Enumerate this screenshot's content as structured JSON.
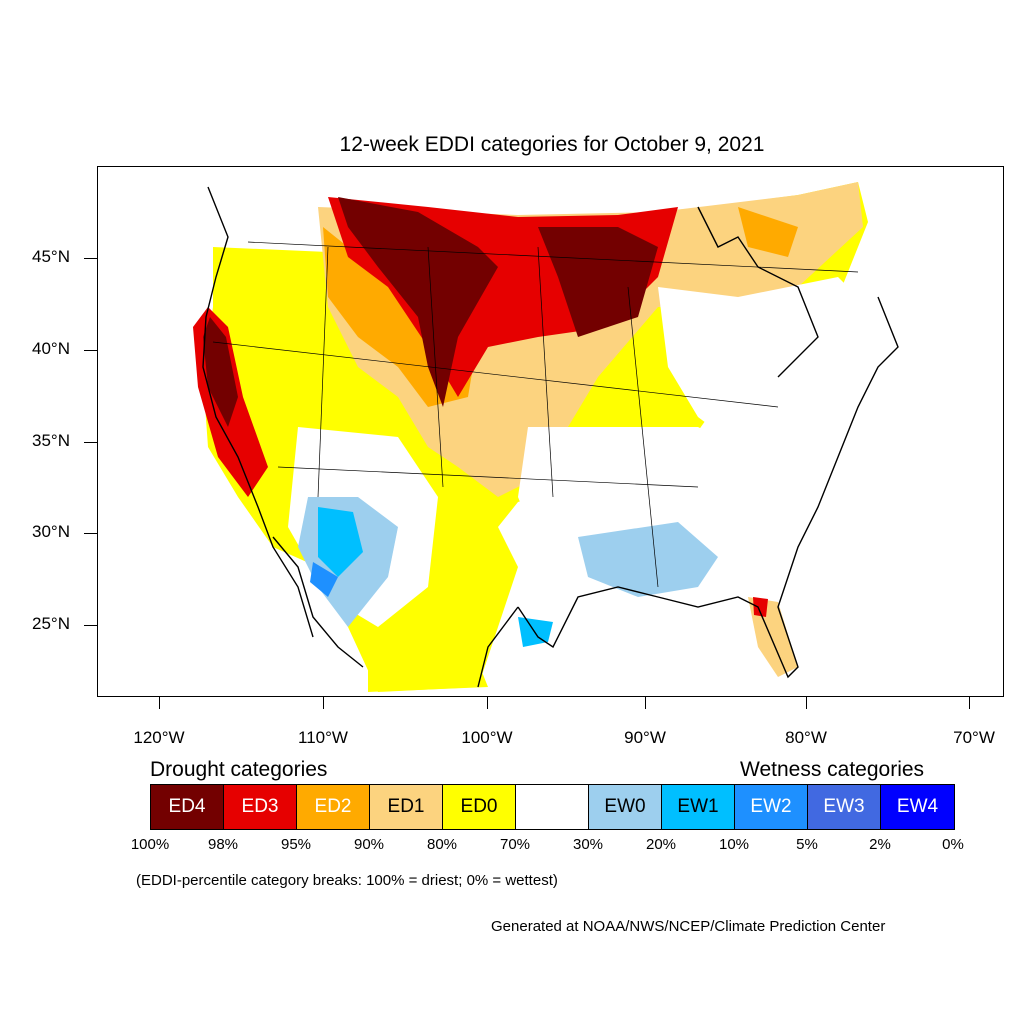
{
  "title": "12-week EDDI categories for October 9, 2021",
  "lat_labels": [
    "45°N",
    "40°N",
    "35°N",
    "30°N",
    "25°N"
  ],
  "lon_labels": [
    "120°W",
    "110°W",
    "100°W",
    "90°W",
    "80°W",
    "70°W"
  ],
  "legend": {
    "drought_heading": "Drought categories",
    "wetness_heading": "Wetness categories",
    "categories": [
      {
        "label": "ED4",
        "color": "#730000",
        "text_color": "#ffffff"
      },
      {
        "label": "ED3",
        "color": "#e60000",
        "text_color": "#ffffff"
      },
      {
        "label": "ED2",
        "color": "#ffaa00",
        "text_color": "#ffffff"
      },
      {
        "label": "ED1",
        "color": "#fcd37f",
        "text_color": "#000000"
      },
      {
        "label": "ED0",
        "color": "#ffff00",
        "text_color": "#000000"
      },
      {
        "label": "",
        "color": "#ffffff",
        "text_color": "#000000"
      },
      {
        "label": "EW0",
        "color": "#9dcfee",
        "text_color": "#000000"
      },
      {
        "label": "EW1",
        "color": "#00bfff",
        "text_color": "#000000"
      },
      {
        "label": "EW2",
        "color": "#1e90ff",
        "text_color": "#ffffff"
      },
      {
        "label": "EW3",
        "color": "#4169e1",
        "text_color": "#ffffff"
      },
      {
        "label": "EW4",
        "color": "#0000ff",
        "text_color": "#ffffff"
      }
    ],
    "breaks": [
      "100%",
      "98%",
      "95%",
      "90%",
      "80%",
      "70%",
      "30%",
      "20%",
      "10%",
      "5%",
      "2%",
      "0%"
    ]
  },
  "note": "(EDDI-percentile category breaks: 100% = driest; 0% = wettest)",
  "credit": "Generated at NOAA/NWS/NCEP/Climate Prediction Center"
}
